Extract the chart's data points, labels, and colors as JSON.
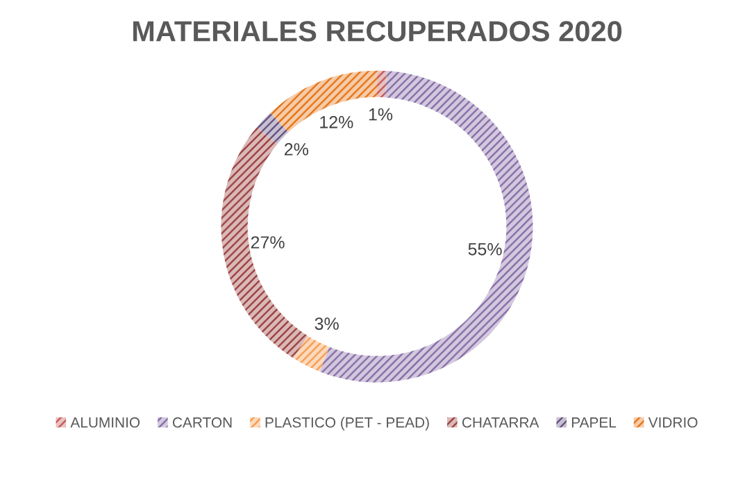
{
  "chart_data": {
    "type": "donut",
    "title": "MATERIALES RECUPERADOS 2020",
    "categories": [
      "ALUMINIO",
      "CARTON",
      "PLASTICO (PET - PEAD)",
      "CHATARRA",
      "PAPEL",
      "VIDRIO"
    ],
    "values": [
      1,
      55,
      3,
      27,
      2,
      12
    ],
    "colors": [
      "#c0504d",
      "#8064a2",
      "#f79646",
      "#953735",
      "#604a7b",
      "#e46c0a"
    ],
    "value_labels": [
      "1%",
      "55%",
      "3%",
      "27%",
      "2%",
      "12%"
    ],
    "legend": "bottom"
  }
}
